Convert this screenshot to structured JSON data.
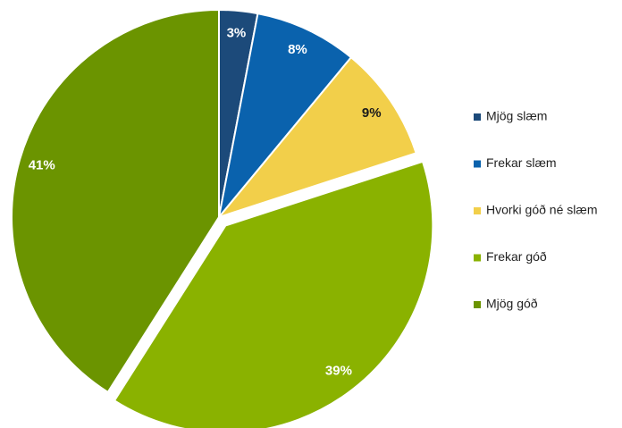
{
  "chart_data": {
    "type": "pie",
    "categories": [
      "Mjög slæm",
      "Frekar slæm",
      "Hvorki góð né slæm",
      "Frekar góð",
      "Mjög góð"
    ],
    "values": [
      3,
      8,
      9,
      39,
      41
    ],
    "value_labels": [
      "3%",
      "8%",
      "9%",
      "39%",
      "41%"
    ],
    "colors": [
      "#1c4a7a",
      "#0a62ad",
      "#f2cf4a",
      "#8ab200",
      "#6b9400"
    ],
    "label_colors": [
      "#ffffff",
      "#ffffff",
      "#1a1a1a",
      "#ffffff",
      "#ffffff"
    ],
    "exploded": [
      false,
      false,
      false,
      true,
      false
    ],
    "legend": "right"
  }
}
